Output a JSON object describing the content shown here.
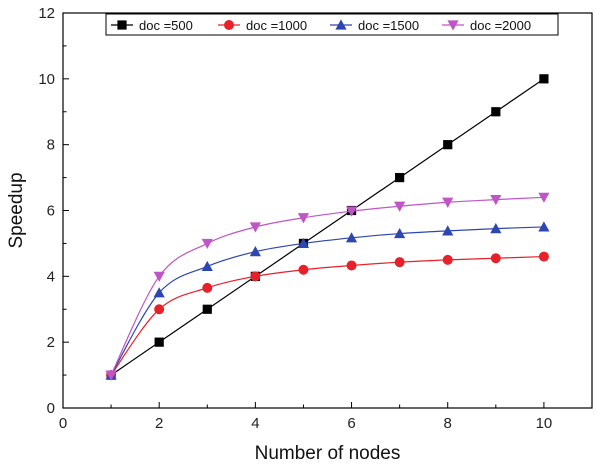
{
  "chart_data": {
    "type": "line",
    "title": "",
    "xlabel": "Number of nodes",
    "ylabel": "Speedup",
    "xlim": [
      0,
      11
    ],
    "ylim": [
      0,
      12
    ],
    "xticks": [
      0,
      2,
      4,
      6,
      8,
      10
    ],
    "yticks": [
      0,
      2,
      4,
      6,
      8,
      10,
      12
    ],
    "grid": false,
    "legend_position": "top",
    "series": [
      {
        "name": "doc =500",
        "color": "#000000",
        "marker": "square",
        "x": [
          1,
          2,
          3,
          4,
          5,
          6,
          7,
          8,
          9,
          10
        ],
        "y": [
          1,
          2,
          3,
          4,
          5,
          6,
          7,
          8,
          9,
          10
        ]
      },
      {
        "name": "doc =1000",
        "color": "#e8202a",
        "marker": "circle",
        "x": [
          1,
          2,
          3,
          4,
          5,
          6,
          7,
          8,
          9,
          10
        ],
        "y": [
          1,
          3,
          3.65,
          4,
          4.2,
          4.33,
          4.43,
          4.5,
          4.55,
          4.6
        ]
      },
      {
        "name": "doc =1500",
        "color": "#2e46b0",
        "marker": "triangle-up",
        "x": [
          1,
          2,
          3,
          4,
          5,
          6,
          7,
          8,
          9,
          10
        ],
        "y": [
          1,
          3.5,
          4.3,
          4.75,
          5,
          5.17,
          5.3,
          5.38,
          5.45,
          5.5
        ]
      },
      {
        "name": "doc =2000",
        "color": "#c055c8",
        "marker": "triangle-down",
        "x": [
          1,
          2,
          3,
          4,
          5,
          6,
          7,
          8,
          9,
          10
        ],
        "y": [
          1,
          4,
          5,
          5.5,
          5.78,
          5.98,
          6.13,
          6.25,
          6.33,
          6.4
        ]
      }
    ]
  }
}
